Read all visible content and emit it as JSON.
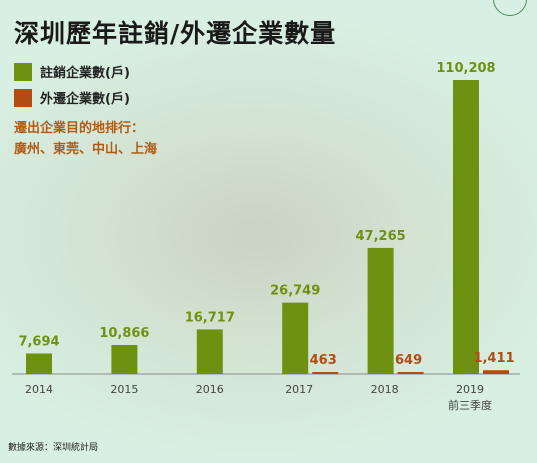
{
  "chart_data": {
    "type": "bar",
    "title": "深圳歷年註銷/外遷企業數量",
    "categories": [
      "2014",
      "2015",
      "2016",
      "2017",
      "2018",
      "2019"
    ],
    "category_sublabels": [
      "",
      "",
      "",
      "",
      "",
      "前三季度"
    ],
    "series": [
      {
        "name": "註銷企業數(戶)",
        "color": "#6f9111",
        "values": [
          7694,
          10866,
          16717,
          26749,
          47265,
          110208
        ],
        "labels": [
          "7,694",
          "10,866",
          "16,717",
          "26,749",
          "47,265",
          "110,208"
        ]
      },
      {
        "name": "外遷企業數(戶)",
        "color": "#b24d12",
        "values": [
          null,
          null,
          null,
          463,
          649,
          1411
        ],
        "labels": [
          "",
          "",
          "",
          "463",
          "649",
          "1,411"
        ]
      }
    ],
    "legend_position": "top-left",
    "grid": false,
    "ylim": [
      0,
      110208
    ]
  },
  "note": {
    "line1": "遷出企業目的地排行：",
    "line2": "廣州、東莞、中山、上海"
  },
  "source": "數據來源：深圳統計局",
  "colors": {
    "green": "#6f9111",
    "orange": "#b24d12",
    "axis": "#8a8a8a"
  }
}
